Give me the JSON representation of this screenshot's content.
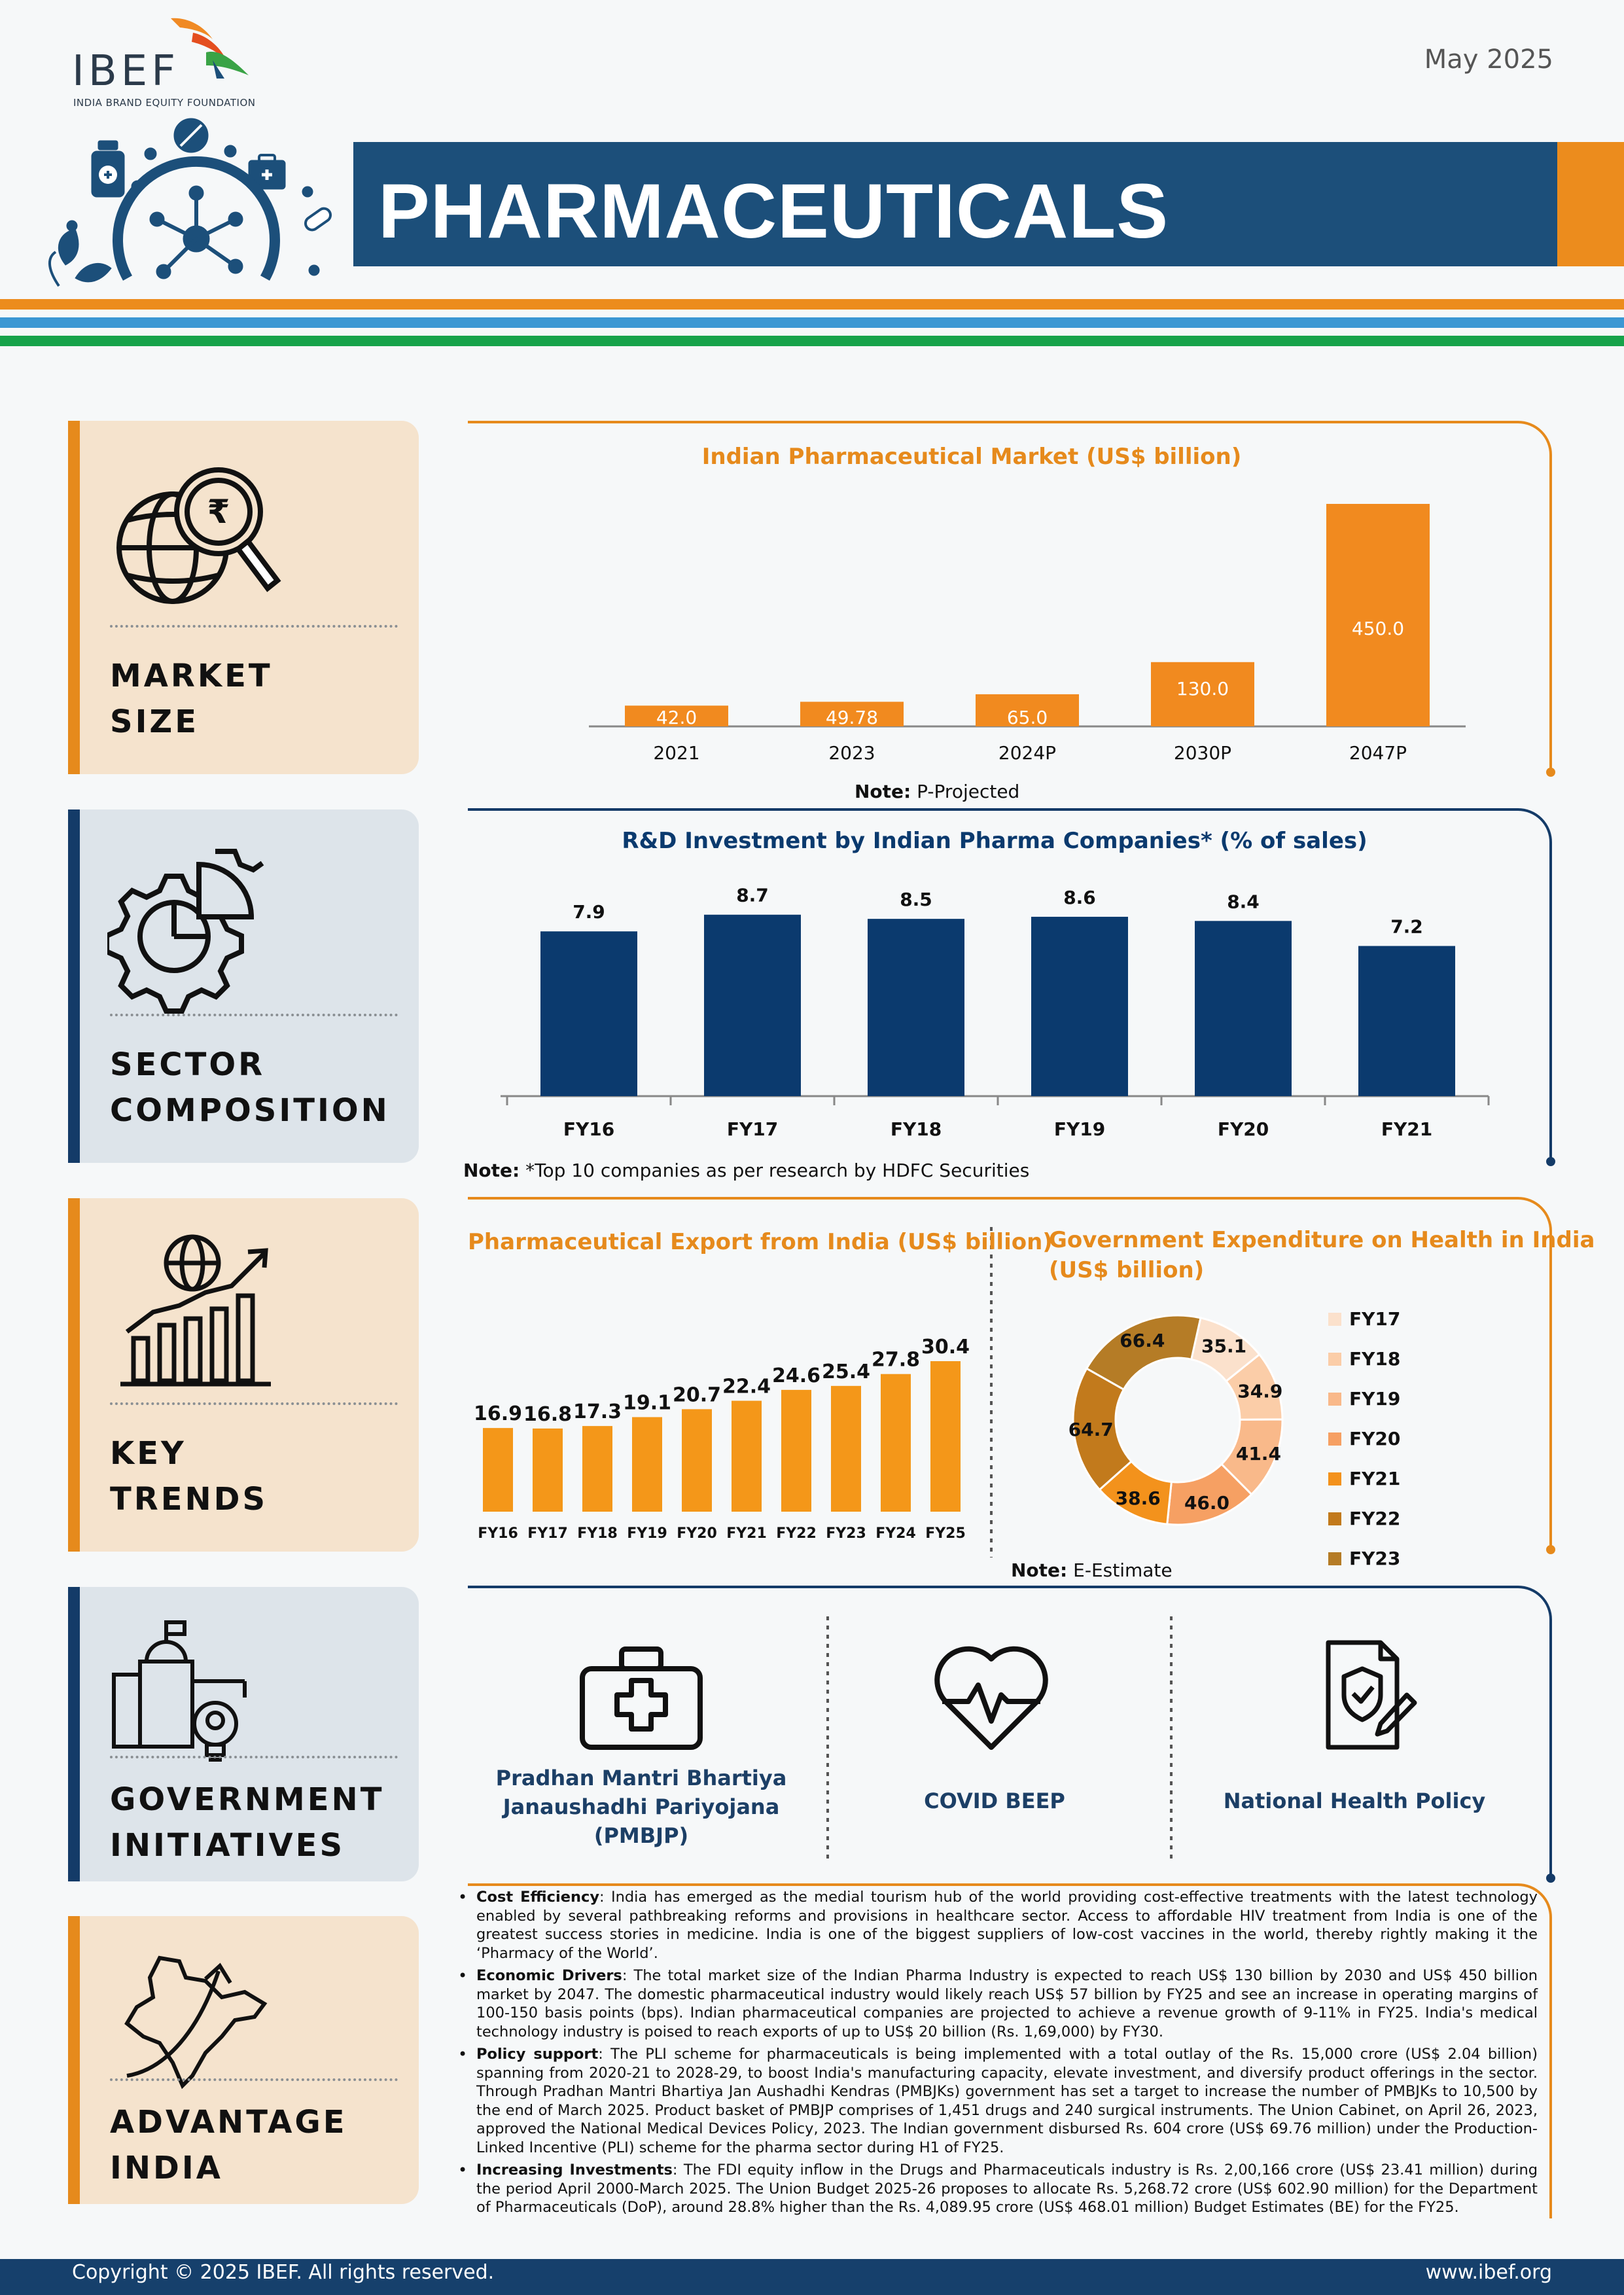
{
  "header": {
    "logo": "IBEF",
    "logo_subtitle": "INDIA BRAND EQUITY FOUNDATION",
    "date": "May 2025",
    "title": "PHARMACEUTICALS"
  },
  "colors": {
    "navy": "#1c4f7a",
    "orange": "#ec8c1d",
    "bar_orange": "#f18a1f",
    "bar_navy": "#0b3a6e",
    "export_orange": "#f49719"
  },
  "tiles": [
    {
      "line1": "MARKET",
      "line2": "SIZE",
      "icon": "globe-magnifier-rupee-icon"
    },
    {
      "line1": "SECTOR",
      "line2": "COMPOSITION",
      "icon": "gear-pie-icon"
    },
    {
      "line1": "KEY",
      "line2": "TRENDS",
      "icon": "growth-chart-globe-icon"
    },
    {
      "line1": "GOVERNMENT",
      "line2": "INITIATIVES",
      "icon": "building-gear-bulb-icon"
    },
    {
      "line1": "ADVANTAGE",
      "line2": "INDIA",
      "icon": "india-map-arrow-icon"
    }
  ],
  "chart_data": [
    {
      "type": "bar",
      "title": "Indian Pharmaceutical Market (US$ billion)",
      "categories": [
        "2021",
        "2023",
        "2024P",
        "2030P",
        "2047P"
      ],
      "values": [
        42.0,
        49.78,
        65.0,
        130.0,
        450.0
      ],
      "value_labels": [
        "42.0",
        "49.78",
        "65.0",
        "130.0",
        "450.0"
      ],
      "note_bold": "Note:",
      "note": " P-Projected"
    },
    {
      "type": "bar",
      "title": "R&D Investment by Indian Pharma Companies* (% of sales)",
      "categories": [
        "FY16",
        "FY17",
        "FY18",
        "FY19",
        "FY20",
        "FY21"
      ],
      "values": [
        7.9,
        8.7,
        8.5,
        8.6,
        8.4,
        7.2
      ],
      "value_labels": [
        "7.9",
        "8.7",
        "8.5",
        "8.6",
        "8.4",
        "7.2"
      ],
      "note_bold": "Note:",
      "note": " *Top 10 companies as per research by HDFC Securities"
    },
    {
      "type": "bar",
      "title": "Pharmaceutical Export from India (US$ billion)",
      "categories": [
        "FY16",
        "FY17",
        "FY18",
        "FY19",
        "FY20",
        "FY21",
        "FY22",
        "FY23",
        "FY24",
        "FY25"
      ],
      "values": [
        16.9,
        16.8,
        17.3,
        19.1,
        20.7,
        22.4,
        24.6,
        25.4,
        27.8,
        30.4
      ],
      "value_labels": [
        "16.9",
        "16.8",
        "17.3",
        "19.1",
        "20.7",
        "22.4",
        "24.6",
        "25.4",
        "27.8",
        "30.4"
      ]
    },
    {
      "type": "pie",
      "title_line1": "Government Expenditure on Health in India",
      "title_line2": "(US$ billion)",
      "categories": [
        "FY17",
        "FY18",
        "FY19",
        "FY20",
        "FY21",
        "FY22",
        "FY23"
      ],
      "values": [
        35.1,
        34.9,
        41.4,
        46.0,
        38.6,
        64.7,
        66.4
      ],
      "value_labels": [
        "35.1",
        "34.9",
        "41.4",
        "46.0",
        "38.6",
        "64.7",
        "66.4"
      ],
      "colors": [
        "#fbe1cc",
        "#fbcda8",
        "#f9b98a",
        "#f6a063",
        "#f3921c",
        "#c27a1c",
        "#b57c26"
      ],
      "legend_position": "right",
      "note_bold": "Note:",
      "note": " E-Estimate"
    }
  ],
  "initiatives": [
    {
      "line1": "Pradhan Mantri Bhartiya",
      "line2": "Janaushadhi Pariyojana",
      "line3": "(PMBJP)",
      "icon": "first-aid-kit-icon"
    },
    {
      "label": "COVID BEEP",
      "icon": "heart-pulse-icon"
    },
    {
      "label": "National Health Policy",
      "icon": "policy-document-icon"
    }
  ],
  "advantages": [
    {
      "heading": "Cost Efficiency",
      "text": ": India has emerged as the medial tourism hub of the world providing cost-effective treatments with the latest technology enabled by several pathbreaking reforms and provisions in healthcare sector. Access to affordable HIV treatment from India is one of the greatest success stories in medicine. India is one of the biggest suppliers of low-cost vaccines in the world, thereby rightly making it the ‘Pharmacy of the World’."
    },
    {
      "heading": "Economic Drivers",
      "text": ": The total market size of the Indian Pharma Industry is expected to reach US$ 130 billion by 2030 and US$ 450 billion market by 2047. The domestic pharmaceutical industry would likely reach US$ 57 billion by FY25 and see an increase in operating margins of 100-150 basis points (bps). Indian pharmaceutical companies are projected to achieve a revenue growth of 9-11% in FY25. India's medical technology industry is poised to reach exports of up to US$ 20 billion (Rs. 1,69,000) by FY30."
    },
    {
      "heading": "Policy support",
      "text": ": The PLI scheme for pharmaceuticals is being implemented with a total outlay of the Rs. 15,000 crore (US$ 2.04 billion) spanning from 2020-21 to 2028-29, to boost India's manufacturing capacity, elevate investment, and diversify product offerings in the sector. Through Pradhan Mantri Bhartiya Jan Aushadhi Kendras (PMBJKs) government has set a target to increase the number of PMBJKs to 10,500 by the end of March 2025. Product basket of PMBJP comprises of 1,451 drugs and 240 surgical instruments. The Union Cabinet, on April 26, 2023, approved the National Medical Devices Policy, 2023. The Indian government disbursed Rs. 604 crore (US$ 69.76 million) under the Production-Linked Incentive (PLI) scheme for the pharma sector during H1 of FY25."
    },
    {
      "heading": "Increasing Investments",
      "text": ": The FDI equity inflow in the Drugs and Pharmaceuticals industry is Rs. 2,00,166 crore (US$ 23.41 million) during the period April 2000-March 2025. The Union Budget 2025-26 proposes to allocate Rs. 5,268.72 crore (US$ 602.90 million) for the Department of Pharmaceuticals (DoP), around 28.8% higher than the Rs. 4,089.95 crore (US$ 468.01 million) Budget Estimates (BE) for the FY25."
    }
  ],
  "footer": {
    "copyright": "Copyright © 2025 IBEF. All rights reserved.",
    "website": "www.ibef.org"
  }
}
